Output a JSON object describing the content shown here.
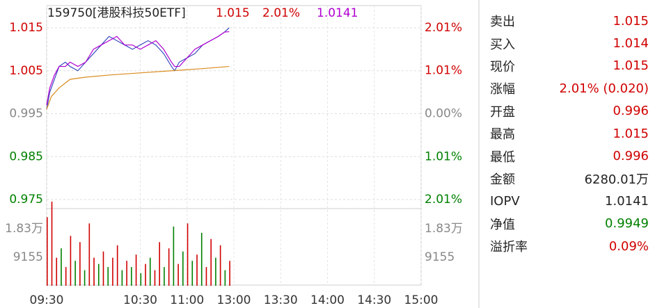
{
  "chart_data": {
    "type": "line",
    "title": "159750[港股科技50ETF]",
    "annotations": [
      "1.015",
      "2.01%",
      "1.0141"
    ],
    "xlim": [
      0,
      240
    ],
    "xticks": [
      {
        "value": 0,
        "label": "09:30"
      },
      {
        "value": 60,
        "label": "10:30"
      },
      {
        "value": 90,
        "label": "11:00"
      },
      {
        "value": 120,
        "label": "13:00"
      },
      {
        "value": 150,
        "label": "13:30"
      },
      {
        "value": 180,
        "label": "14:00"
      },
      {
        "value": 210,
        "label": "14:30"
      },
      {
        "value": 240,
        "label": "15:00"
      }
    ],
    "ylim": [
      0.975,
      1.015
    ],
    "yticks": [
      1.015,
      1.005,
      0.995,
      0.985,
      0.975
    ],
    "y2lim": [
      -2.01,
      2.01
    ],
    "y2ticks": [
      {
        "value": 2.01,
        "label": "2.01%"
      },
      {
        "value": 1.01,
        "label": "1.01%"
      },
      {
        "value": 0,
        "label": "0.00%"
      },
      {
        "value": -1.01,
        "label": "1.01%"
      },
      {
        "value": -2.01,
        "label": "2.01%"
      }
    ],
    "grid": true,
    "series": [
      {
        "color": "#3b4cc0",
        "x": [
          0,
          2,
          5,
          8,
          12,
          15,
          20,
          25,
          30,
          35,
          40,
          45,
          50,
          55,
          60,
          65,
          70,
          75,
          80,
          82,
          85,
          90,
          95,
          100,
          105,
          110,
          114,
          117
        ],
        "values": [
          0.996,
          1.0,
          1.003,
          1.006,
          1.007,
          1.006,
          1.005,
          1.007,
          1.009,
          1.011,
          1.013,
          1.012,
          1.011,
          1.01,
          1.011,
          1.012,
          1.011,
          1.009,
          1.006,
          1.005,
          1.007,
          1.008,
          1.009,
          1.011,
          1.012,
          1.013,
          1.014,
          1.015
        ]
      },
      {
        "color": "#b000d0",
        "x": [
          0,
          2,
          5,
          8,
          12,
          15,
          20,
          25,
          30,
          35,
          40,
          45,
          50,
          55,
          60,
          65,
          70,
          75,
          80,
          82,
          85,
          90,
          95,
          100,
          105,
          110,
          114,
          117
        ],
        "values": [
          0.997,
          1.001,
          1.004,
          1.006,
          1.006,
          1.007,
          1.006,
          1.007,
          1.01,
          1.011,
          1.012,
          1.013,
          1.011,
          1.011,
          1.01,
          1.011,
          1.012,
          1.01,
          1.007,
          1.006,
          1.006,
          1.008,
          1.01,
          1.011,
          1.012,
          1.013,
          1.014,
          1.0141
        ]
      },
      {
        "color": "#d98a1e",
        "x": [
          0,
          3,
          8,
          15,
          25,
          40,
          60,
          80,
          100,
          117
        ],
        "values": [
          0.996,
          0.999,
          1.001,
          1.003,
          1.0035,
          1.004,
          1.0045,
          1.005,
          1.0055,
          1.006
        ]
      }
    ],
    "volume": {
      "ylim": [
        0,
        27000
      ],
      "yticks": [
        {
          "value": 18300,
          "label": "1.83万"
        },
        9155
      ],
      "x": [
        0,
        3,
        6,
        9,
        12,
        15,
        18,
        21,
        24,
        27,
        30,
        33,
        36,
        39,
        42,
        45,
        48,
        51,
        54,
        57,
        60,
        63,
        66,
        69,
        72,
        75,
        78,
        81,
        84,
        87,
        90,
        93,
        96,
        99,
        102,
        105,
        108,
        111,
        114,
        117
      ],
      "values": [
        22000,
        27000,
        9000,
        12000,
        6000,
        16000,
        8000,
        14000,
        5000,
        20000,
        9000,
        7000,
        11000,
        6000,
        9000,
        13000,
        5000,
        8000,
        6000,
        10000,
        4000,
        7000,
        9000,
        5000,
        14000,
        6000,
        12000,
        19000,
        7000,
        11000,
        20000,
        8000,
        10000,
        17000,
        6000,
        15000,
        9000,
        13000,
        5000,
        8000
      ],
      "colors": [
        "#d00000",
        "#d00000",
        "#d00000",
        "#008000",
        "#d00000",
        "#d00000",
        "#008000",
        "#d00000",
        "#008000",
        "#d00000",
        "#d00000",
        "#008000",
        "#d00000",
        "#008000",
        "#d00000",
        "#d00000",
        "#008000",
        "#d00000",
        "#008000",
        "#d00000",
        "#008000",
        "#d00000",
        "#008000",
        "#d00000",
        "#d00000",
        "#008000",
        "#d00000",
        "#008000",
        "#d00000",
        "#008000",
        "#d00000",
        "#008000",
        "#d00000",
        "#008000",
        "#d00000",
        "#d00000",
        "#008000",
        "#d00000",
        "#008000",
        "#d00000"
      ]
    }
  },
  "panel": {
    "rows": [
      {
        "label": "卖出",
        "value": "1.015"
      },
      {
        "label": "买入",
        "value": "1.014"
      },
      {
        "label": "现价",
        "value": "1.015"
      },
      {
        "label": "涨幅",
        "value": "2.01% (0.020)"
      },
      {
        "label": "开盘",
        "value": "0.996"
      },
      {
        "label": "最高",
        "value": "1.015"
      },
      {
        "label": "最低",
        "value": "0.996"
      },
      {
        "label": "金额",
        "value": "6280.01万"
      },
      {
        "label": "IOPV",
        "value": "1.0141"
      },
      {
        "label": "净值",
        "value": "0.9949"
      },
      {
        "label": "溢折率",
        "value": "0.09%"
      }
    ]
  }
}
